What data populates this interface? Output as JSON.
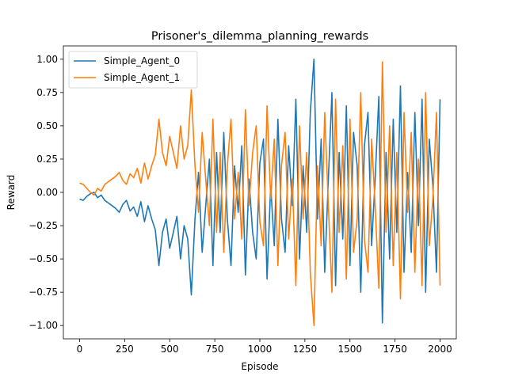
{
  "chart_data": {
    "type": "line",
    "title": "Prisoner's_dilemma_planning_rewards",
    "xlabel": "Episode",
    "ylabel": "Reward",
    "xlim": [
      -90,
      2090
    ],
    "ylim": [
      -1.1,
      1.1
    ],
    "xticks": [
      0,
      250,
      500,
      750,
      1000,
      1250,
      1500,
      1750,
      2000
    ],
    "xtick_labels": [
      "0",
      "250",
      "500",
      "750",
      "1000",
      "1250",
      "1500",
      "1750",
      "2000"
    ],
    "yticks": [
      -1.0,
      -0.75,
      -0.5,
      -0.25,
      0.0,
      0.25,
      0.5,
      0.75,
      1.0
    ],
    "ytick_labels": [
      "−1.00",
      "−0.75",
      "−0.50",
      "−0.25",
      "0.00",
      "0.25",
      "0.50",
      "0.75",
      "1.00"
    ],
    "grid": false,
    "legend_position": "top-left",
    "series": [
      {
        "name": "Simple_Agent_0",
        "color": "#1f77b4",
        "x": [
          0,
          20,
          40,
          60,
          80,
          100,
          120,
          140,
          160,
          180,
          200,
          220,
          240,
          260,
          280,
          300,
          320,
          340,
          360,
          380,
          400,
          420,
          440,
          460,
          480,
          500,
          520,
          540,
          560,
          580,
          600,
          620,
          640,
          660,
          680,
          700,
          720,
          740,
          760,
          780,
          800,
          820,
          840,
          860,
          880,
          900,
          920,
          940,
          960,
          980,
          1000,
          1020,
          1040,
          1060,
          1080,
          1100,
          1120,
          1140,
          1160,
          1180,
          1200,
          1220,
          1240,
          1260,
          1280,
          1300,
          1320,
          1340,
          1360,
          1380,
          1400,
          1420,
          1440,
          1460,
          1480,
          1500,
          1520,
          1540,
          1560,
          1580,
          1600,
          1620,
          1640,
          1660,
          1680,
          1700,
          1720,
          1740,
          1760,
          1780,
          1800,
          1820,
          1840,
          1860,
          1880,
          1900,
          1920,
          1940,
          1960,
          1980,
          2000
        ],
        "values": [
          -0.05,
          -0.06,
          -0.03,
          -0.01,
          0.0,
          -0.04,
          -0.02,
          -0.06,
          -0.08,
          -0.1,
          -0.12,
          -0.15,
          -0.09,
          -0.06,
          -0.14,
          -0.11,
          -0.18,
          -0.07,
          -0.22,
          -0.1,
          -0.2,
          -0.28,
          -0.55,
          -0.3,
          -0.2,
          -0.42,
          -0.3,
          -0.18,
          -0.5,
          -0.25,
          -0.35,
          -0.77,
          -0.2,
          0.15,
          -0.45,
          -0.1,
          0.25,
          -0.55,
          0.3,
          -0.3,
          0.45,
          -0.2,
          -0.55,
          0.2,
          -0.15,
          0.35,
          -0.62,
          0.1,
          -0.3,
          -0.5,
          0.22,
          0.4,
          -0.65,
          0.05,
          -0.4,
          0.55,
          -0.2,
          -0.45,
          0.35,
          -0.1,
          0.7,
          -0.5,
          0.2,
          -0.3,
          0.6,
          1.0,
          -0.2,
          0.4,
          -0.6,
          0.1,
          0.75,
          -0.7,
          0.3,
          -0.35,
          0.65,
          -0.55,
          0.45,
          0.2,
          -0.75,
          0.35,
          0.6,
          -0.4,
          0.1,
          0.72,
          -0.98,
          0.3,
          -0.5,
          0.55,
          -0.3,
          0.8,
          -0.6,
          0.15,
          -0.45,
          0.6,
          -0.25,
          0.7,
          -0.75,
          0.4,
          0.05,
          -0.6,
          0.7
        ]
      },
      {
        "name": "Simple_Agent_1",
        "color": "#ff7f0e",
        "x": [
          0,
          20,
          40,
          60,
          80,
          100,
          120,
          140,
          160,
          180,
          200,
          220,
          240,
          260,
          280,
          300,
          320,
          340,
          360,
          380,
          400,
          420,
          440,
          460,
          480,
          500,
          520,
          540,
          560,
          580,
          600,
          620,
          640,
          660,
          680,
          700,
          720,
          740,
          760,
          780,
          800,
          820,
          840,
          860,
          880,
          900,
          920,
          940,
          960,
          980,
          1000,
          1020,
          1040,
          1060,
          1080,
          1100,
          1120,
          1140,
          1160,
          1180,
          1200,
          1220,
          1240,
          1260,
          1280,
          1300,
          1320,
          1340,
          1360,
          1380,
          1400,
          1420,
          1440,
          1460,
          1480,
          1500,
          1520,
          1540,
          1560,
          1580,
          1600,
          1620,
          1640,
          1660,
          1680,
          1700,
          1720,
          1740,
          1760,
          1780,
          1800,
          1820,
          1840,
          1860,
          1880,
          1900,
          1920,
          1940,
          1960,
          1980,
          2000
        ],
        "values": [
          0.07,
          0.06,
          0.03,
          0.0,
          -0.02,
          0.03,
          0.01,
          0.06,
          0.08,
          0.1,
          0.12,
          0.15,
          0.09,
          0.06,
          0.14,
          0.11,
          0.18,
          0.07,
          0.22,
          0.1,
          0.2,
          0.28,
          0.55,
          0.3,
          0.2,
          0.42,
          0.3,
          0.18,
          0.5,
          0.25,
          0.35,
          0.77,
          0.2,
          -0.15,
          0.45,
          0.1,
          -0.25,
          0.55,
          -0.3,
          0.3,
          -0.45,
          0.2,
          0.55,
          -0.2,
          0.15,
          -0.35,
          0.62,
          -0.1,
          0.3,
          0.5,
          -0.22,
          -0.4,
          0.65,
          -0.05,
          0.4,
          -0.55,
          0.2,
          0.45,
          -0.35,
          0.1,
          -0.7,
          0.5,
          -0.2,
          0.3,
          -0.6,
          -1.0,
          0.2,
          -0.4,
          0.6,
          -0.1,
          -0.75,
          0.7,
          -0.3,
          0.35,
          -0.65,
          0.55,
          -0.45,
          -0.2,
          0.75,
          -0.35,
          -0.6,
          0.4,
          -0.1,
          -0.72,
          0.98,
          -0.3,
          0.5,
          -0.55,
          0.3,
          -0.8,
          0.6,
          -0.15,
          0.45,
          -0.6,
          0.25,
          -0.7,
          0.75,
          -0.4,
          -0.05,
          0.6,
          -0.7
        ]
      }
    ]
  }
}
